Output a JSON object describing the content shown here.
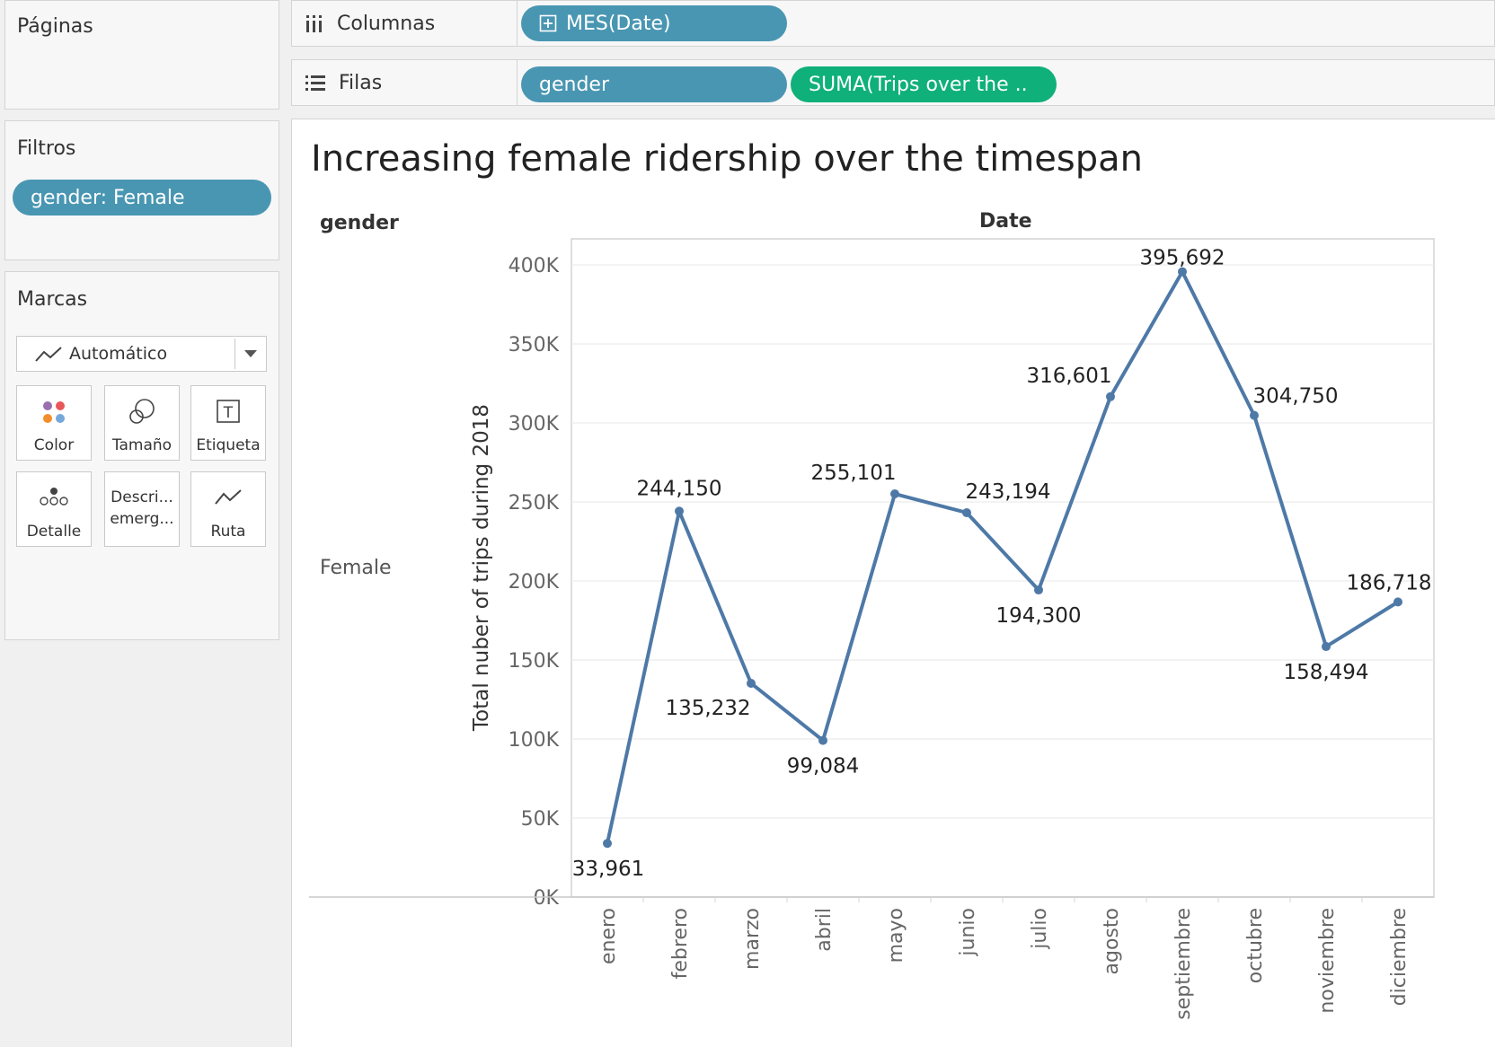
{
  "sidebar": {
    "pages": {
      "title": "Páginas"
    },
    "filters": {
      "title": "Filtros",
      "pill": "gender: Female"
    },
    "marks": {
      "title": "Marcas",
      "mark_type": "Automático",
      "cards": [
        {
          "label": "Color",
          "icon": "color-dots-icon"
        },
        {
          "label": "Tamaño",
          "icon": "size-circles-icon"
        },
        {
          "label": "Etiqueta",
          "icon": "label-text-icon"
        },
        {
          "label": "Detalle",
          "icon": "detail-dots-icon"
        },
        {
          "label": "Descri...",
          "label2": "emerg...",
          "icon": "tooltip-icon"
        },
        {
          "label": "Ruta",
          "icon": "path-line-icon"
        }
      ]
    }
  },
  "shelves": {
    "columns": {
      "label": "Columnas",
      "icon": "columns-icon",
      "pills": [
        {
          "text": "MES(Date)",
          "icon": "expand-plus-icon"
        }
      ]
    },
    "rows": {
      "label": "Filas",
      "icon": "rows-icon",
      "pills": [
        {
          "text": "gender"
        },
        {
          "text": "SUMA(Trips over the .."
        }
      ]
    }
  },
  "colors": {
    "pill_blue": "#4996b2",
    "pill_green": "#0fb07a",
    "line": "#4e79a7"
  },
  "view": {
    "title": "Increasing female ridership over the timespan",
    "row_header": "gender",
    "col_header": "Date",
    "row_value": "Female"
  },
  "chart_data": {
    "type": "line",
    "title": "Increasing female ridership over the timespan",
    "ylabel": "Total nuber of trips during 2018",
    "xlabel": "Date",
    "categories": [
      "enero",
      "febrero",
      "marzo",
      "abril",
      "mayo",
      "junio",
      "julio",
      "agosto",
      "septiembre",
      "octubre",
      "noviembre",
      "diciembre"
    ],
    "series": [
      {
        "values": [
          33961,
          244150,
          135232,
          99084,
          255101,
          243194,
          194300,
          316601,
          395692,
          304750,
          158494,
          186718
        ],
        "labels": [
          "33,961",
          "244,150",
          "135,232",
          "99,084",
          "255,101",
          "243,194",
          "194,300",
          "316,601",
          "395,692",
          "304,750",
          "158,494",
          "186,718"
        ]
      }
    ],
    "ylim": [
      0,
      420000
    ],
    "yticks": [
      0,
      50000,
      100000,
      150000,
      200000,
      250000,
      300000,
      350000,
      400000
    ],
    "ytick_labels": [
      "0K",
      "50K",
      "100K",
      "150K",
      "200K",
      "250K",
      "300K",
      "350K",
      "400K"
    ],
    "grid": true,
    "legend": "none"
  }
}
